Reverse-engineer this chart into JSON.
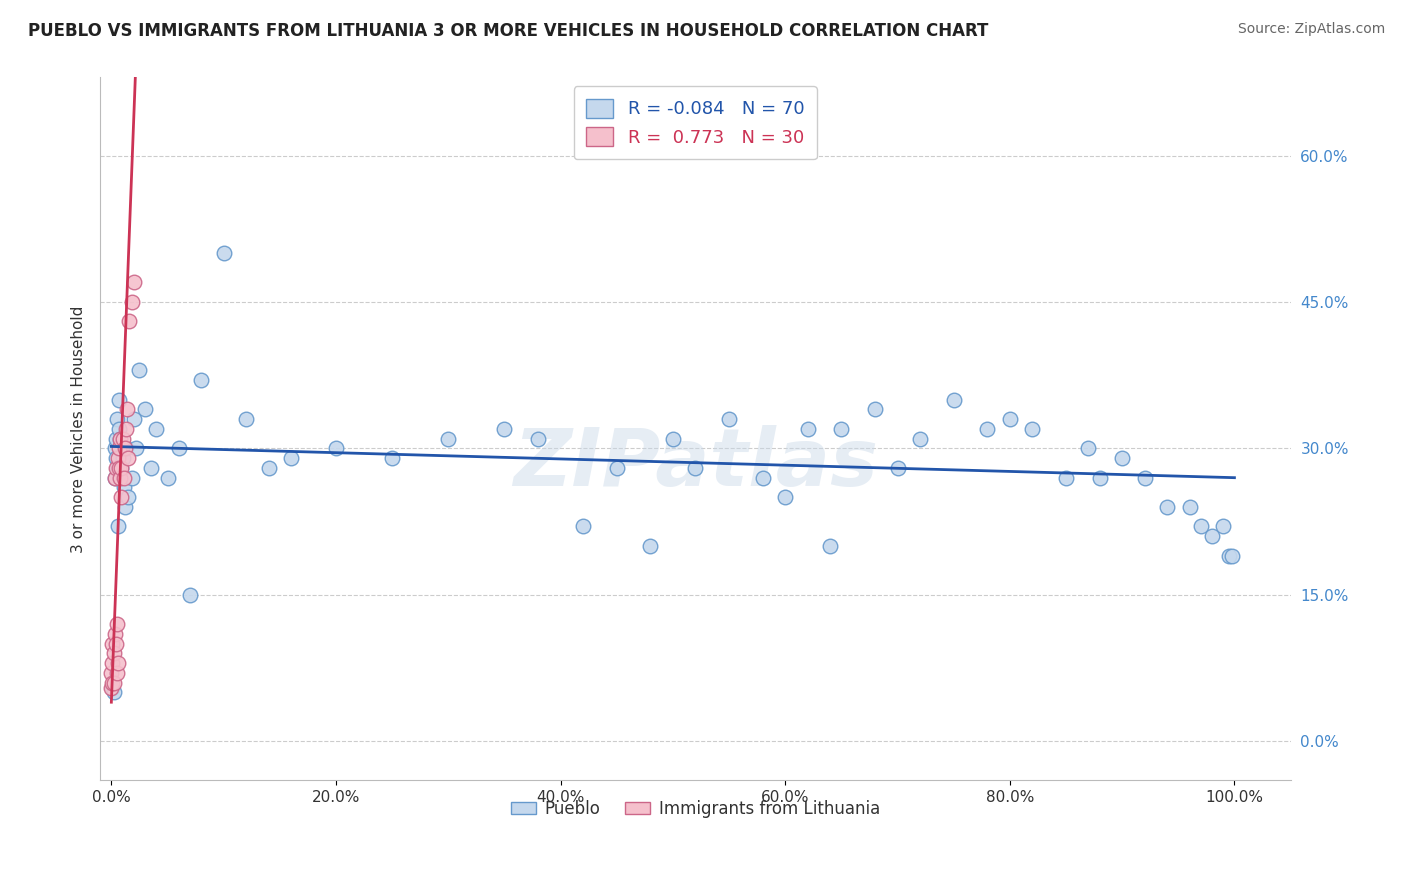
{
  "title": "PUEBLO VS IMMIGRANTS FROM LITHUANIA 3 OR MORE VEHICLES IN HOUSEHOLD CORRELATION CHART",
  "source": "Source: ZipAtlas.com",
  "ylabel": "3 or more Vehicles in Household",
  "legend_labels": [
    "Pueblo",
    "Immigrants from Lithuania"
  ],
  "r_pueblo": -0.084,
  "n_pueblo": 70,
  "r_lithuania": 0.773,
  "n_lithuania": 30,
  "xlim": [
    -0.01,
    1.05
  ],
  "ylim": [
    -0.04,
    0.68
  ],
  "xticks": [
    0.0,
    0.2,
    0.4,
    0.6,
    0.8,
    1.0
  ],
  "xticklabels": [
    "0.0%",
    "20.0%",
    "40.0%",
    "60.0%",
    "80.0%",
    "100.0%"
  ],
  "yticks": [
    0.0,
    0.15,
    0.3,
    0.45,
    0.6
  ],
  "yticklabels": [
    "0.0%",
    "15.0%",
    "30.0%",
    "45.0%",
    "60.0%"
  ],
  "title_color": "#222222",
  "source_color": "#666666",
  "pueblo_color": "#c5d8ed",
  "pueblo_edge_color": "#6699cc",
  "lithuania_color": "#f5c0cc",
  "lithuania_edge_color": "#cc6688",
  "pueblo_line_color": "#2255aa",
  "lithuania_line_color": "#cc3355",
  "grid_color": "#cccccc",
  "ytick_color": "#4488cc",
  "xtick_color": "#333333",
  "pueblo_x": [
    0.001,
    0.002,
    0.003,
    0.003,
    0.004,
    0.004,
    0.005,
    0.005,
    0.006,
    0.006,
    0.007,
    0.007,
    0.008,
    0.008,
    0.009,
    0.01,
    0.011,
    0.012,
    0.013,
    0.015,
    0.018,
    0.02,
    0.022,
    0.025,
    0.03,
    0.035,
    0.04,
    0.05,
    0.06,
    0.07,
    0.08,
    0.1,
    0.12,
    0.14,
    0.16,
    0.2,
    0.25,
    0.3,
    0.35,
    0.38,
    0.42,
    0.45,
    0.48,
    0.5,
    0.52,
    0.55,
    0.58,
    0.6,
    0.62,
    0.64,
    0.65,
    0.68,
    0.7,
    0.72,
    0.75,
    0.78,
    0.8,
    0.82,
    0.85,
    0.87,
    0.88,
    0.9,
    0.92,
    0.94,
    0.96,
    0.97,
    0.98,
    0.99,
    0.995,
    0.998
  ],
  "pueblo_y": [
    0.055,
    0.05,
    0.27,
    0.3,
    0.29,
    0.31,
    0.28,
    0.33,
    0.28,
    0.22,
    0.32,
    0.35,
    0.27,
    0.31,
    0.28,
    0.29,
    0.26,
    0.24,
    0.3,
    0.25,
    0.27,
    0.33,
    0.3,
    0.38,
    0.34,
    0.28,
    0.32,
    0.27,
    0.3,
    0.15,
    0.37,
    0.5,
    0.33,
    0.28,
    0.29,
    0.3,
    0.29,
    0.31,
    0.32,
    0.31,
    0.22,
    0.28,
    0.2,
    0.31,
    0.28,
    0.33,
    0.27,
    0.25,
    0.32,
    0.2,
    0.32,
    0.34,
    0.28,
    0.31,
    0.35,
    0.32,
    0.33,
    0.32,
    0.27,
    0.3,
    0.27,
    0.29,
    0.27,
    0.24,
    0.24,
    0.22,
    0.21,
    0.22,
    0.19,
    0.19
  ],
  "lithuania_x": [
    0.0,
    0.0,
    0.001,
    0.001,
    0.001,
    0.002,
    0.002,
    0.003,
    0.003,
    0.004,
    0.004,
    0.005,
    0.005,
    0.006,
    0.006,
    0.007,
    0.007,
    0.008,
    0.008,
    0.009,
    0.009,
    0.01,
    0.011,
    0.012,
    0.013,
    0.014,
    0.015,
    0.016,
    0.018,
    0.02
  ],
  "lithuania_y": [
    0.055,
    0.07,
    0.06,
    0.08,
    0.1,
    0.06,
    0.09,
    0.11,
    0.27,
    0.1,
    0.28,
    0.07,
    0.12,
    0.08,
    0.29,
    0.3,
    0.28,
    0.27,
    0.31,
    0.25,
    0.28,
    0.31,
    0.27,
    0.3,
    0.32,
    0.34,
    0.29,
    0.43,
    0.45,
    0.47
  ]
}
